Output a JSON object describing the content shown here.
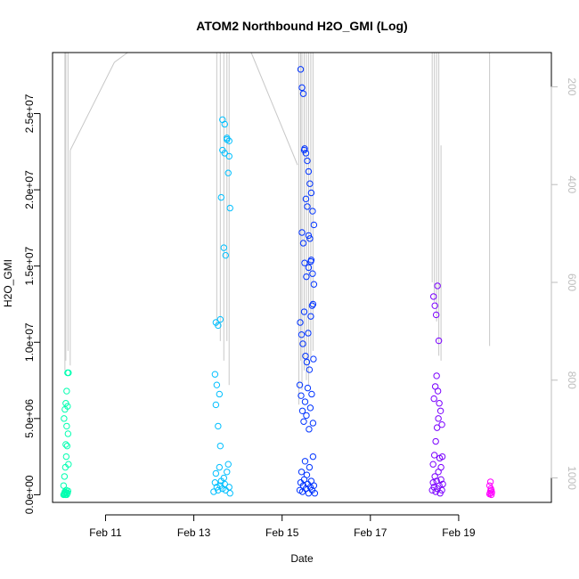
{
  "chart_data": {
    "type": "scatter",
    "title": "ATOM2 Northbound H2O_GMI (Log)",
    "xlabel": "Date",
    "ylabel": "H2O_GMI",
    "xlim": [
      9.8,
      21.1
    ],
    "ylim": [
      -500000,
      29000000
    ],
    "x_ticks": [
      {
        "value": 11,
        "label": "Feb 11"
      },
      {
        "value": 13,
        "label": "Feb 13"
      },
      {
        "value": 15,
        "label": "Feb 15"
      },
      {
        "value": 17,
        "label": "Feb 17"
      },
      {
        "value": 19,
        "label": "Feb 19"
      }
    ],
    "y_ticks": [
      {
        "value": 0,
        "label": "0.0e+00"
      },
      {
        "value": 5000000,
        "label": "5.0e+06"
      },
      {
        "value": 10000000,
        "label": "1.0e+07"
      },
      {
        "value": 15000000,
        "label": "1.5e+07"
      },
      {
        "value": 20000000,
        "label": "2.0e+07"
      },
      {
        "value": 25000000,
        "label": "2.5e+07"
      }
    ],
    "right_axis": {
      "label": "",
      "lim": [
        1050,
        130
      ],
      "reversed": true,
      "ticks": [
        {
          "value": 200,
          "label": "200"
        },
        {
          "value": 400,
          "label": "400"
        },
        {
          "value": 600,
          "label": "600"
        },
        {
          "value": 800,
          "label": "800"
        },
        {
          "value": 1000,
          "label": "1000"
        }
      ]
    },
    "grid": false,
    "legend": "none",
    "series": [
      {
        "color": "#00ffb0",
        "x": [
          10.05,
          10.06,
          10.07,
          10.08,
          10.09,
          10.1,
          10.11,
          10.12,
          10.13,
          10.14,
          10.15,
          10.05,
          10.07,
          10.09,
          10.11,
          10.13,
          10.15,
          10.06,
          10.08,
          10.1,
          10.12,
          10.14,
          10.16,
          10.1,
          10.12,
          10.14,
          10.16
        ],
        "y": [
          0,
          50000,
          100000,
          200000,
          0,
          150000,
          300000,
          0,
          80000,
          120000,
          250000,
          600000,
          1200000,
          1800000,
          2500000,
          3200000,
          4000000,
          5000000,
          5600000,
          6000000,
          6800000,
          8000000,
          8000000,
          3300000,
          4500000,
          5800000,
          2000000
        ]
      },
      {
        "color": "#00bfff",
        "x": [
          13.45,
          13.48,
          13.5,
          13.52,
          13.55,
          13.58,
          13.6,
          13.62,
          13.65,
          13.68,
          13.7,
          13.72,
          13.75,
          13.78,
          13.8,
          13.82,
          13.5,
          13.55,
          13.6,
          13.65,
          13.7,
          13.75,
          13.8,
          13.48,
          13.52,
          13.58,
          13.62,
          13.68,
          13.72,
          13.78,
          13.82,
          13.5,
          13.55,
          13.6,
          13.65,
          13.7,
          13.75,
          13.8
        ],
        "y": [
          200000,
          800000,
          1400000,
          500000,
          300000,
          1800000,
          600000,
          900000,
          400000,
          1100000,
          700000,
          300000,
          1500000,
          2000000,
          500000,
          100000,
          11300000,
          11100000,
          11500000,
          24600000,
          24300000,
          23400000,
          23200000,
          7900000,
          7200000,
          6600000,
          19500000,
          16200000,
          15700000,
          21100000,
          18800000,
          5900000,
          4500000,
          3200000,
          22600000,
          22400000,
          23300000,
          22200000
        ]
      },
      {
        "color": "#0033ff",
        "x": [
          15.4,
          15.42,
          15.44,
          15.46,
          15.48,
          15.5,
          15.52,
          15.54,
          15.56,
          15.58,
          15.6,
          15.62,
          15.64,
          15.66,
          15.68,
          15.7,
          15.72,
          15.74,
          15.4,
          15.43,
          15.46,
          15.49,
          15.52,
          15.55,
          15.58,
          15.61,
          15.64,
          15.67,
          15.7,
          15.41,
          15.44,
          15.47,
          15.5,
          15.53,
          15.56,
          15.59,
          15.62,
          15.65,
          15.68,
          15.71,
          15.45,
          15.48,
          15.51,
          15.54,
          15.57,
          15.6,
          15.63,
          15.66,
          15.69,
          15.72,
          15.42,
          15.45,
          15.48,
          15.51,
          15.54,
          15.57,
          15.6,
          15.63,
          15.66,
          15.69,
          15.72,
          15.5,
          15.55,
          15.6,
          15.65,
          15.7
        ],
        "y": [
          300000,
          800000,
          1500000,
          200000,
          600000,
          1000000,
          2200000,
          400000,
          1300000,
          700000,
          100000,
          1800000,
          500000,
          900000,
          300000,
          2500000,
          600000,
          100000,
          7200000,
          6500000,
          5500000,
          4800000,
          6100000,
          5200000,
          7000000,
          4300000,
          5700000,
          6600000,
          4700000,
          11300000,
          10500000,
          9900000,
          12000000,
          9100000,
          8700000,
          10600000,
          8200000,
          11700000,
          12400000,
          8900000,
          17200000,
          16500000,
          15200000,
          19400000,
          18900000,
          17000000,
          16800000,
          15400000,
          14500000,
          13800000,
          27900000,
          26700000,
          26300000,
          22700000,
          22400000,
          21900000,
          21200000,
          20400000,
          19800000,
          18600000,
          17700000,
          22600000,
          14300000,
          14900000,
          15300000,
          12500000
        ]
      },
      {
        "color": "#7a00ff",
        "x": [
          18.4,
          18.42,
          18.44,
          18.46,
          18.48,
          18.5,
          18.52,
          18.54,
          18.56,
          18.58,
          18.6,
          18.62,
          18.64,
          18.42,
          18.45,
          18.48,
          18.51,
          18.54,
          18.57,
          18.6,
          18.63,
          18.44,
          18.47,
          18.5,
          18.53,
          18.56,
          18.59,
          18.62,
          18.43,
          18.46,
          18.49,
          18.52,
          18.55
        ],
        "y": [
          300000,
          800000,
          500000,
          1200000,
          200000,
          900000,
          400000,
          1500000,
          600000,
          100000,
          1000000,
          300000,
          700000,
          2000000,
          2600000,
          3500000,
          4400000,
          5000000,
          2400000,
          1800000,
          2500000,
          6300000,
          7100000,
          7800000,
          6800000,
          6000000,
          5500000,
          4600000,
          13000000,
          12400000,
          11800000,
          13700000,
          10100000
        ]
      },
      {
        "color": "#ff00ff",
        "x": [
          19.7,
          19.71,
          19.72,
          19.73,
          19.74,
          19.75,
          19.7,
          19.72,
          19.74
        ],
        "y": [
          50000,
          120000,
          250000,
          400000,
          0,
          150000,
          600000,
          850000,
          300000
        ]
      }
    ],
    "profile_lines": [
      {
        "x": 10.08,
        "pressure_top": 130,
        "pressure_bottom": 780
      },
      {
        "x": 10.1,
        "pressure_top": 130,
        "pressure_bottom": 760
      },
      {
        "x": 10.15,
        "pressure_top": 130,
        "pressure_bottom": 740
      },
      {
        "x": 10.2,
        "pressure_top": 330,
        "pressure_bottom": 770
      },
      {
        "x": 13.52,
        "pressure_top": 130,
        "pressure_bottom": 690
      },
      {
        "x": 13.6,
        "pressure_top": 130,
        "pressure_bottom": 720
      },
      {
        "x": 13.68,
        "pressure_top": 130,
        "pressure_bottom": 760
      },
      {
        "x": 13.75,
        "pressure_top": 130,
        "pressure_bottom": 720
      },
      {
        "x": 13.8,
        "pressure_top": 130,
        "pressure_bottom": 810
      },
      {
        "x": 15.38,
        "pressure_top": 130,
        "pressure_bottom": 850
      },
      {
        "x": 15.42,
        "pressure_top": 130,
        "pressure_bottom": 760
      },
      {
        "x": 15.45,
        "pressure_top": 130,
        "pressure_bottom": 820
      },
      {
        "x": 15.5,
        "pressure_top": 130,
        "pressure_bottom": 780
      },
      {
        "x": 15.55,
        "pressure_top": 130,
        "pressure_bottom": 800
      },
      {
        "x": 15.6,
        "pressure_top": 130,
        "pressure_bottom": 810
      },
      {
        "x": 15.65,
        "pressure_top": 130,
        "pressure_bottom": 760
      },
      {
        "x": 15.7,
        "pressure_top": 130,
        "pressure_bottom": 740
      },
      {
        "x": 18.4,
        "pressure_top": 130,
        "pressure_bottom": 600
      },
      {
        "x": 18.45,
        "pressure_top": 130,
        "pressure_bottom": 640
      },
      {
        "x": 18.5,
        "pressure_top": 130,
        "pressure_bottom": 680
      },
      {
        "x": 18.55,
        "pressure_top": 130,
        "pressure_bottom": 750
      },
      {
        "x": 18.6,
        "pressure_top": 320,
        "pressure_bottom": 760
      },
      {
        "x": 19.7,
        "pressure_top": 130,
        "pressure_bottom": 730
      }
    ],
    "transit_segments": [
      {
        "x": [
          10.2,
          11.2,
          11.5
        ],
        "pressure": [
          330,
          150,
          130
        ]
      },
      {
        "x": [
          14.3,
          15.35
        ],
        "pressure": [
          130,
          360
        ]
      }
    ]
  }
}
